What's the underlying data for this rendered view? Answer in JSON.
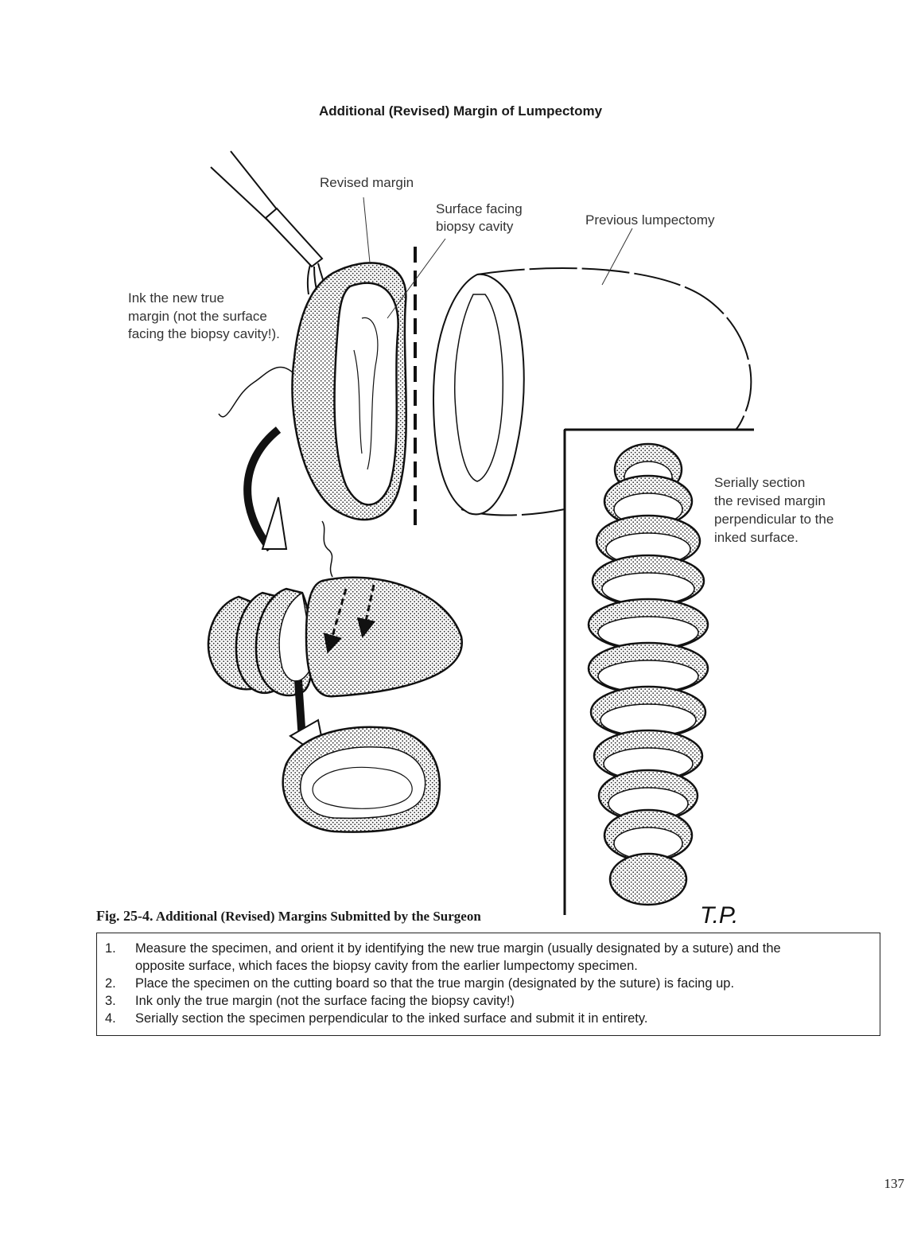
{
  "figure_title": "Additional (Revised) Margin of Lumpectomy",
  "labels": {
    "revised_margin": "Revised margin",
    "surface_facing_line1": "Surface facing",
    "surface_facing_line2": "biopsy cavity",
    "previous_lumpectomy": "Previous lumpectomy",
    "ink_line1": "Ink the new true",
    "ink_line2": "margin (not the surface",
    "ink_line3": "facing the biopsy cavity!).",
    "serial_line1": "Serially section",
    "serial_line2": "the revised margin",
    "serial_line3": "perpendicular to the",
    "serial_line4": "inked surface."
  },
  "caption": {
    "number": "Fig. 25-4.",
    "title": "Additional (Revised) Margins Submitted by the Surgeon"
  },
  "artist_signature": "T.P.",
  "steps": [
    {
      "num": "1.",
      "text": "Measure the specimen, and orient it by identifying the new true margin (usually designated by a suture) and the"
    },
    {
      "num": "",
      "text": "opposite surface, which faces the biopsy cavity from the earlier lumpectomy specimen."
    },
    {
      "num": "2.",
      "text": "Place the specimen on the cutting board so that the true margin (designated by the suture) is facing up."
    },
    {
      "num": "3.",
      "text": "Ink only the true margin (not the surface facing the biopsy cavity!)"
    },
    {
      "num": "4.",
      "text": "Serially section the specimen perpendicular to the inked surface and submit it in entirety."
    }
  ],
  "page_number": "137",
  "colors": {
    "ink": "#1a1a1a",
    "stipple": "#555555"
  }
}
